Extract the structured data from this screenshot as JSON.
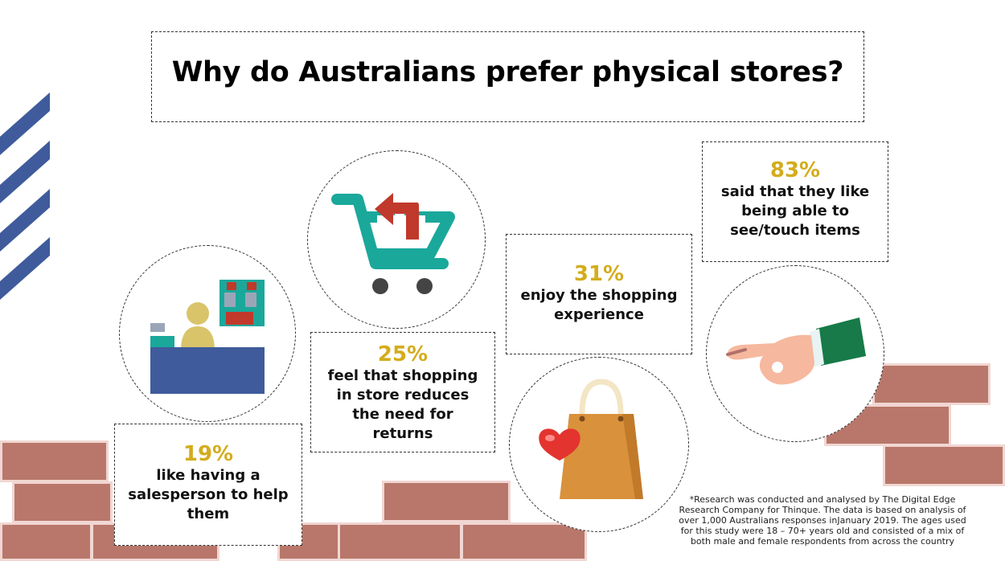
{
  "title": "Why do Australians prefer physical stores?",
  "stats": [
    {
      "percent": "19%",
      "text": "like having a salesperson to help them"
    },
    {
      "percent": "25%",
      "text": "feel that shopping in store reduces the need for returns"
    },
    {
      "percent": "31%",
      "text": "enjoy the shopping experience"
    },
    {
      "percent": "83%",
      "text": "said that they like being able to see/touch items"
    }
  ],
  "footnote": "*Research was conducted and analysed by The Digital Edge Research Company for Thinque. The data is based on analysis of over 1,000 Australians responses inJanuary 2019. The ages used for this study were 18 – 70+ years old and consisted of a mix of both male and female respondents from across the country",
  "icons": [
    "salesperson-counter-icon",
    "cart-return-icon",
    "shopping-bag-heart-icon",
    "hand-touch-icon"
  ],
  "colors": {
    "percent": "#d4ac1c",
    "brick": "#b8776a",
    "stripes": "#3f5b9b",
    "cart": "#1aa89b",
    "arrow": "#c0392b"
  }
}
